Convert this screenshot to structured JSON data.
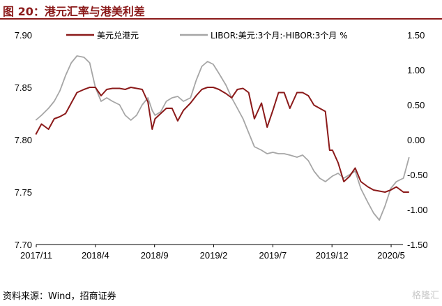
{
  "title": "图 20：港元汇率与港美利差",
  "source": "资料来源：Wind，招商证券",
  "watermark": "格隆汇",
  "chart_data": {
    "type": "line",
    "title": "图 20：港元汇率与港美利差",
    "xlabel": "",
    "ylabel": "",
    "x_tick_labels": [
      "2017/11",
      "2018/4",
      "2018/9",
      "2019/2",
      "2019/7",
      "2019/12",
      "2020/5"
    ],
    "x_range": [
      "2017/11",
      "2020/6"
    ],
    "left_axis": {
      "ylim": [
        7.7,
        7.9
      ],
      "ticks": [
        "7.70",
        "7.75",
        "7.80",
        "7.85",
        "7.90"
      ]
    },
    "right_axis": {
      "ylim": [
        -1.5,
        1.5
      ],
      "ticks": [
        "-1.50",
        "-1.00",
        "-0.50",
        "0.00",
        "0.50",
        "1.00",
        "1.50"
      ]
    },
    "legend_position": "top",
    "grid": false,
    "series": [
      {
        "name": "美元兑港元",
        "axis": "left",
        "color": "#8B1A1A",
        "x": [
          2017.83,
          2017.87,
          2017.92,
          2017.96,
          2018.0,
          2018.04,
          2018.08,
          2018.12,
          2018.17,
          2018.21,
          2018.25,
          2018.29,
          2018.33,
          2018.37,
          2018.42,
          2018.46,
          2018.5,
          2018.54,
          2018.58,
          2018.62,
          2018.65,
          2018.67,
          2018.71,
          2018.75,
          2018.79,
          2018.83,
          2018.87,
          2018.92,
          2018.96,
          2019.0,
          2019.04,
          2019.08,
          2019.12,
          2019.17,
          2019.21,
          2019.25,
          2019.29,
          2019.33,
          2019.37,
          2019.42,
          2019.46,
          2019.5,
          2019.54,
          2019.58,
          2019.62,
          2019.67,
          2019.71,
          2019.75,
          2019.79,
          2019.83,
          2019.87,
          2019.9,
          2019.92,
          2019.96,
          2020.0,
          2020.04,
          2020.08,
          2020.12,
          2020.17,
          2020.21,
          2020.25,
          2020.29,
          2020.33,
          2020.37,
          2020.42,
          2020.46
        ],
        "values": [
          7.805,
          7.815,
          7.81,
          7.82,
          7.822,
          7.825,
          7.835,
          7.845,
          7.848,
          7.85,
          7.85,
          7.842,
          7.848,
          7.849,
          7.849,
          7.848,
          7.85,
          7.849,
          7.848,
          7.836,
          7.81,
          7.82,
          7.825,
          7.83,
          7.83,
          7.818,
          7.828,
          7.835,
          7.842,
          7.848,
          7.85,
          7.85,
          7.848,
          7.844,
          7.84,
          7.848,
          7.849,
          7.845,
          7.82,
          7.835,
          7.812,
          7.828,
          7.845,
          7.845,
          7.83,
          7.845,
          7.845,
          7.842,
          7.833,
          7.83,
          7.827,
          7.79,
          7.79,
          7.778,
          7.76,
          7.765,
          7.773,
          7.76,
          7.755,
          7.752,
          7.751,
          7.75,
          7.752,
          7.755,
          7.75,
          7.75
        ]
      },
      {
        "name": "LIBOR:美元:3个月:-HIBOR:3个月  %",
        "axis": "right",
        "color": "#A6A6A6",
        "x": [
          2017.83,
          2017.87,
          2017.92,
          2017.96,
          2018.0,
          2018.04,
          2018.08,
          2018.12,
          2018.17,
          2018.21,
          2018.25,
          2018.29,
          2018.33,
          2018.37,
          2018.42,
          2018.46,
          2018.5,
          2018.54,
          2018.58,
          2018.62,
          2018.65,
          2018.67,
          2018.71,
          2018.75,
          2018.79,
          2018.83,
          2018.87,
          2018.92,
          2018.96,
          2019.0,
          2019.04,
          2019.08,
          2019.12,
          2019.17,
          2019.21,
          2019.25,
          2019.29,
          2019.33,
          2019.37,
          2019.42,
          2019.46,
          2019.5,
          2019.54,
          2019.58,
          2019.62,
          2019.67,
          2019.71,
          2019.75,
          2019.79,
          2019.83,
          2019.87,
          2019.92,
          2019.96,
          2020.0,
          2020.04,
          2020.08,
          2020.12,
          2020.17,
          2020.21,
          2020.25,
          2020.29,
          2020.33,
          2020.37,
          2020.42,
          2020.46
        ],
        "values": [
          0.28,
          0.35,
          0.45,
          0.55,
          0.7,
          0.92,
          1.1,
          1.2,
          1.18,
          1.1,
          0.75,
          0.55,
          0.6,
          0.55,
          0.5,
          0.35,
          0.28,
          0.35,
          0.5,
          0.6,
          0.42,
          0.35,
          0.4,
          0.55,
          0.6,
          0.62,
          0.55,
          0.6,
          0.85,
          1.05,
          1.12,
          1.08,
          0.95,
          0.78,
          0.6,
          0.45,
          0.3,
          0.1,
          -0.1,
          -0.15,
          -0.2,
          -0.18,
          -0.2,
          -0.2,
          -0.22,
          -0.25,
          -0.22,
          -0.3,
          -0.45,
          -0.55,
          -0.6,
          -0.52,
          -0.48,
          -0.55,
          -0.5,
          -0.45,
          -0.7,
          -0.9,
          -1.05,
          -1.15,
          -0.95,
          -0.7,
          -0.6,
          -0.55,
          -0.25
        ]
      }
    ]
  }
}
